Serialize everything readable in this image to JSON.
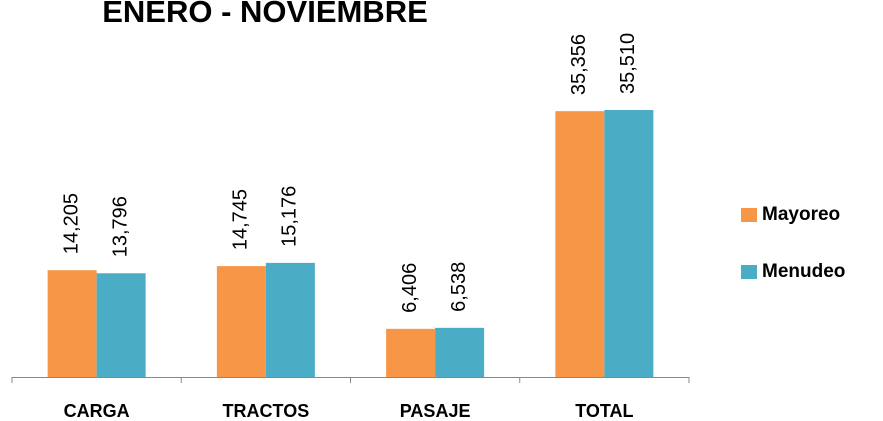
{
  "chart_data": {
    "type": "bar",
    "title": "ENERO - NOVIEMBRE",
    "categories": [
      "CARGA",
      "TRACTOS",
      "PASAJE",
      "TOTAL"
    ],
    "series": [
      {
        "name": "Mayoreo",
        "color": "#f79646",
        "values": [
          14205,
          14745,
          6406,
          35356
        ],
        "value_labels": [
          "14,205",
          "14,745",
          "6,406",
          "35,356"
        ]
      },
      {
        "name": "Menudeo",
        "color": "#4bacc6",
        "values": [
          13796,
          15176,
          6538,
          35510
        ],
        "value_labels": [
          "13,796",
          "15,176",
          "6,538",
          "35,510"
        ]
      }
    ],
    "legend": "right"
  }
}
